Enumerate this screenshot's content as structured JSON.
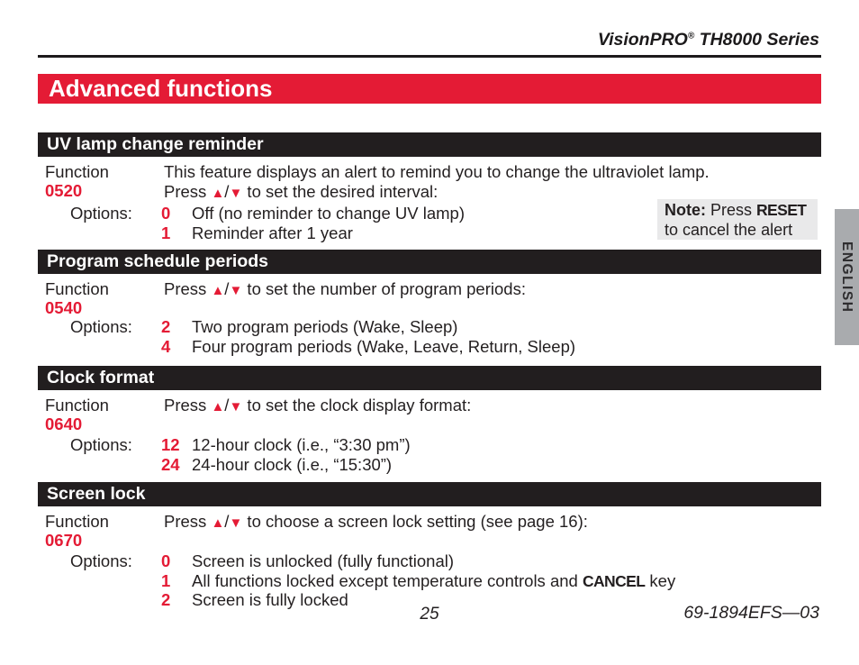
{
  "header": {
    "title_brand": "VisionPRO",
    "title_reg": "®",
    "title_rest": " TH8000 Series"
  },
  "banner": {
    "title": "Advanced functions"
  },
  "side_tab": {
    "label": "ENGLISH"
  },
  "icons": {
    "up_triangle": "▲",
    "down_triangle": "▼",
    "slash": "/"
  },
  "note": {
    "label": "Note:",
    "before_key": " Press ",
    "key": "RESET",
    "line2": "to cancel the alert"
  },
  "sections": [
    {
      "title": "UV lamp change reminder",
      "function_label": "Function",
      "function_code": "0520",
      "description": "This feature displays an alert to remind you to change the ultraviolet lamp.",
      "press": {
        "before": "Press ",
        "after": " to set the desired interval:"
      },
      "options_label": "Options:",
      "options": [
        {
          "value": "0",
          "text": "Off (no reminder to change UV lamp)"
        },
        {
          "value": "1",
          "text": "Reminder after 1 year"
        }
      ]
    },
    {
      "title": "Program schedule periods",
      "function_label": "Function",
      "function_code": "0540",
      "press": {
        "before": "Press ",
        "after": " to set the number of program periods:"
      },
      "options_label": "Options:",
      "options": [
        {
          "value": "2",
          "text": "Two program periods (Wake, Sleep)"
        },
        {
          "value": "4",
          "text": "Four program periods (Wake, Leave, Return, Sleep)"
        }
      ]
    },
    {
      "title": "Clock format",
      "function_label": "Function",
      "function_code": "0640",
      "press": {
        "before": "Press ",
        "after": " to set the clock display format:"
      },
      "options_label": "Options:",
      "options": [
        {
          "value": "12",
          "text": "12-hour clock (i.e., “3:30 pm”)"
        },
        {
          "value": "24",
          "text": "24-hour clock (i.e., “15:30”)"
        }
      ]
    },
    {
      "title": "Screen lock",
      "function_label": "Function",
      "function_code": "0670",
      "press": {
        "before": "Press ",
        "after": " to choose a screen lock setting (see page 16):"
      },
      "options_label": "Options:",
      "options": [
        {
          "value": "0",
          "text": "Screen is unlocked (fully functional)"
        },
        {
          "value": "1",
          "text_before": "All functions locked except temperature controls and ",
          "key": "CANCEL",
          "text_after": " key"
        },
        {
          "value": "2",
          "text": "Screen is fully locked"
        }
      ]
    }
  ],
  "footer": {
    "page_number": "25",
    "doc_number": "69-1894EFS—03"
  },
  "colors": {
    "accent_red": "#e41b35",
    "banner_black": "#221e1f",
    "note_bg": "#e9e9ea",
    "tab_bg": "#a9abae"
  }
}
